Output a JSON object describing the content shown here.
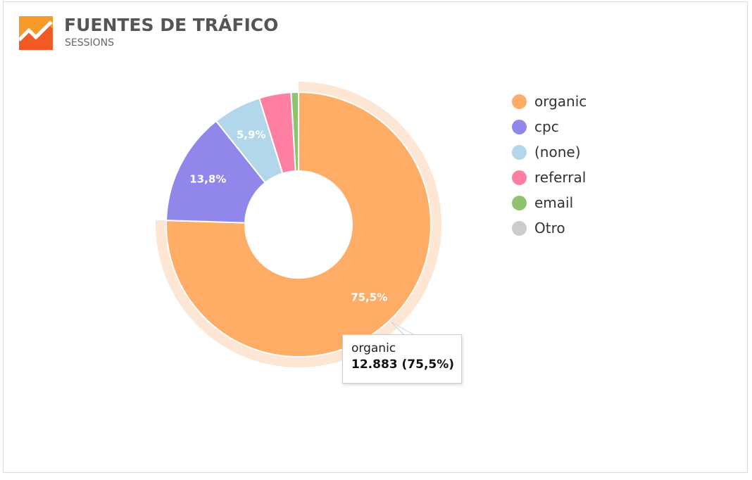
{
  "header": {
    "title": "FUENTES DE TRÁFICO",
    "subtitle": "SESSIONS"
  },
  "colors": {
    "organic": "#ffad66",
    "organic_halo": "#fde6d3",
    "cpc": "#9186ea",
    "none": "#b2d6ea",
    "referral": "#ff7fa3",
    "email": "#8fc36f",
    "otro": "#cccccc",
    "logo_orange": "#f79a2a",
    "logo_red": "#f15a24"
  },
  "tooltip": {
    "name": "organic",
    "value": "12.883 (75,5%)"
  },
  "chart_data": {
    "type": "pie",
    "title": "FUENTES DE TRÁFICO",
    "subtitle": "SESSIONS",
    "legend_position": "right",
    "slices": [
      {
        "name": "organic",
        "percent": 75.5,
        "label": "75,5%",
        "color": "#ffad66",
        "highlighted": true
      },
      {
        "name": "cpc",
        "percent": 13.8,
        "label": "13,8%",
        "color": "#9186ea"
      },
      {
        "name": "(none)",
        "percent": 5.9,
        "label": "5,9%",
        "color": "#b2d6ea"
      },
      {
        "name": "referral",
        "percent": 3.9,
        "label": "",
        "color": "#ff7fa3"
      },
      {
        "name": "email",
        "percent": 0.9,
        "label": "",
        "color": "#8fc36f"
      },
      {
        "name": "Otro",
        "percent": 0.0,
        "label": "",
        "color": "#cccccc"
      }
    ]
  }
}
